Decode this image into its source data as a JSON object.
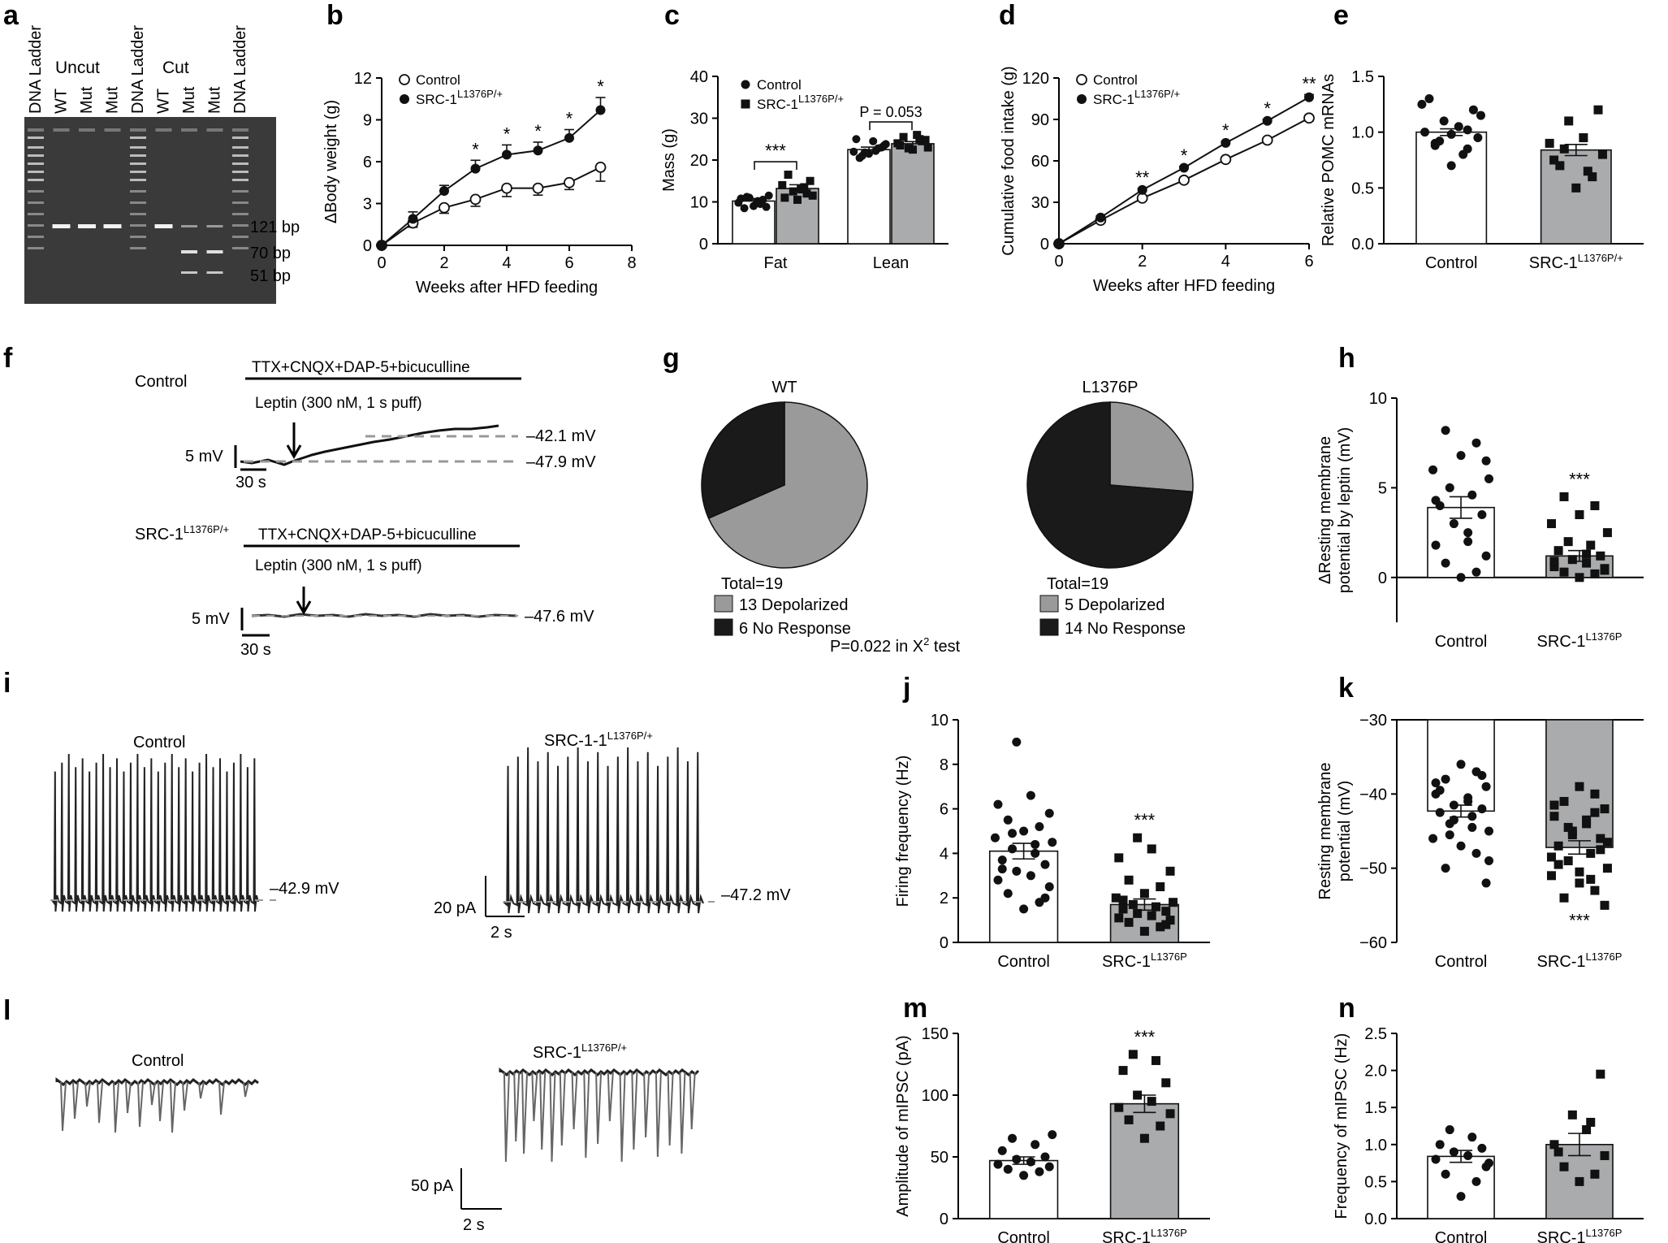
{
  "panels": {
    "a": {
      "letter": "a",
      "lane_labels": [
        "DNA Ladder",
        "WT",
        "Mut",
        "Mut",
        "DNA Ladder",
        "WT",
        "Mut",
        "Mut",
        "DNA Ladder"
      ],
      "group_uncut": "Uncut",
      "group_cut": "Cut",
      "sizes": [
        "121 bp",
        "70 bp",
        "51 bp"
      ]
    },
    "f": {
      "letter": "f",
      "control_label": "Control",
      "mutant_label": "SRC-1",
      "mutant_sup": "L1376P/+",
      "drug_label": "TTX+CNQX+DAP-5+bicuculline",
      "leptin_label": "Leptin (300 nM, 1 s puff)",
      "v1": "–42.1 mV",
      "v2": "–47.9 mV",
      "v3": "–47.6 mV",
      "scale_mv": "5 mV",
      "scale_s": "30 s"
    },
    "g": {
      "letter": "g",
      "footnote": "P=0.022 in X",
      "footnote_sup": "2",
      "footnote_tail": " test"
    },
    "i": {
      "letter": "i",
      "control_label": "Control",
      "mutant_label": "SRC-1-1",
      "mutant_sup": "L1376P/+",
      "v_control": "–42.9 mV",
      "v_mutant": "–47.2 mV",
      "scale_pa": "20 pA",
      "scale_s": "2 s"
    },
    "l": {
      "letter": "l",
      "control_label": "Control",
      "mutant_label": "SRC-1",
      "mutant_sup": "L1376P/+",
      "scale_pa": "50 pA",
      "scale_s": "2 s"
    }
  },
  "chart_data": [
    {
      "id": "b",
      "letter": "b",
      "type": "line",
      "xlabel": "Weeks after HFD feeding",
      "ylabel": "ΔBody weight (g)",
      "xlim": [
        0,
        8
      ],
      "ylim": [
        0,
        12
      ],
      "xticks": [
        "0",
        "2",
        "4",
        "6",
        "8"
      ],
      "yticks": [
        "0",
        "3",
        "6",
        "9",
        "12"
      ],
      "series": [
        {
          "name": "Control",
          "sup": "",
          "marker": "open-circle",
          "x": [
            0,
            1,
            2,
            3,
            4,
            5,
            6,
            7
          ],
          "y": [
            0,
            1.6,
            2.7,
            3.3,
            4.1,
            4.1,
            4.5,
            5.6
          ],
          "err": [
            0,
            0.3,
            0.4,
            0.5,
            0.6,
            0.5,
            0.5,
            1.0
          ]
        },
        {
          "name": "SRC-1",
          "sup": "L1376P/+",
          "marker": "filled-circle",
          "x": [
            0,
            1,
            2,
            3,
            4,
            5,
            6,
            7
          ],
          "y": [
            0,
            1.9,
            3.9,
            5.5,
            6.5,
            6.8,
            7.7,
            9.7
          ],
          "err": [
            0,
            0.5,
            0.4,
            0.6,
            0.7,
            0.6,
            0.6,
            0.9
          ]
        }
      ],
      "annotations": [
        {
          "x": 3,
          "text": "*"
        },
        {
          "x": 4,
          "text": "*"
        },
        {
          "x": 5,
          "text": "*"
        },
        {
          "x": 6,
          "text": "*"
        },
        {
          "x": 7,
          "text": "*"
        }
      ]
    },
    {
      "id": "c",
      "letter": "c",
      "type": "bar",
      "ylabel": "Mass (g)",
      "ylim": [
        0,
        40
      ],
      "yticks": [
        "0",
        "10",
        "20",
        "30",
        "40"
      ],
      "categories": [
        "Fat",
        "Lean"
      ],
      "series": [
        {
          "name": "Control",
          "sup": "",
          "marker": "circle",
          "values": [
            10.2,
            22.5
          ],
          "err": [
            0.6,
            0.6
          ],
          "points": [
            [
              9.0,
              10.5,
              8.5,
              11.5,
              9.8,
              10.2,
              11.0,
              8.8,
              10.8,
              9.5,
              11.2
            ],
            [
              21.5,
              22.8,
              20.5,
              23.5,
              22.0,
              24.5,
              21.8,
              23.0,
              25.0,
              22.2,
              21.0,
              23.8
            ]
          ]
        },
        {
          "name": "SRC-1",
          "sup": "L1376P/+",
          "marker": "square",
          "values": [
            13.2,
            23.9
          ],
          "err": [
            0.9,
            0.5
          ],
          "points": [
            [
              10.5,
              12.0,
              16.5,
              11.5,
              14.0,
              13.0,
              12.5,
              15.0,
              11.0,
              13.5
            ],
            [
              22.5,
              24.5,
              25.5,
              23.0,
              24.0,
              26.0,
              22.8,
              24.8,
              23.5,
              25.0
            ]
          ]
        }
      ],
      "annotations": [
        {
          "category": "Fat",
          "text": "***"
        },
        {
          "category": "Lean",
          "text": "P = 0.053"
        }
      ]
    },
    {
      "id": "d",
      "letter": "d",
      "type": "line",
      "xlabel": "Weeks after HFD feeding",
      "ylabel": "Cumulative food intake (g)",
      "xlim": [
        0,
        6
      ],
      "ylim": [
        0,
        120
      ],
      "xticks": [
        "0",
        "2",
        "4",
        "6"
      ],
      "yticks": [
        "0",
        "30",
        "60",
        "90",
        "120"
      ],
      "series": [
        {
          "name": "Control",
          "sup": "",
          "marker": "open-circle",
          "x": [
            0,
            1,
            2,
            3,
            4,
            5,
            6
          ],
          "y": [
            0,
            17,
            33,
            46,
            61,
            75,
            91
          ],
          "err": [
            0,
            1,
            1,
            1,
            1,
            1,
            2
          ]
        },
        {
          "name": "SRC-1",
          "sup": "L1376P/+",
          "marker": "filled-circle",
          "x": [
            0,
            1,
            2,
            3,
            4,
            5,
            6
          ],
          "y": [
            0,
            19,
            39,
            55,
            73,
            89,
            106
          ],
          "err": [
            0,
            1,
            1,
            1,
            1,
            1,
            2
          ]
        }
      ],
      "annotations": [
        {
          "x": 2,
          "text": "**"
        },
        {
          "x": 3,
          "text": "*"
        },
        {
          "x": 4,
          "text": "*"
        },
        {
          "x": 5,
          "text": "*"
        },
        {
          "x": 6,
          "text": "**"
        }
      ]
    },
    {
      "id": "e",
      "letter": "e",
      "type": "bar",
      "ylabel": "Relative POMC mRNAs",
      "ylim": [
        0,
        1.5
      ],
      "yticks": [
        "0.0",
        "0.5",
        "1.0",
        "1.5"
      ],
      "categories": [
        "Control",
        "SRC-1"
      ],
      "category_sups": [
        "",
        "L1376P/+"
      ],
      "values": [
        1.0,
        0.84
      ],
      "err": [
        0.03,
        0.05
      ],
      "markers": [
        "circle",
        "square"
      ],
      "points": [
        [
          0.7,
          0.85,
          0.9,
          0.95,
          1.0,
          1.05,
          1.1,
          1.2,
          1.3,
          0.8,
          0.92,
          1.15,
          1.25,
          0.98,
          1.02,
          0.88
        ],
        [
          0.5,
          0.6,
          0.7,
          0.8,
          0.9,
          0.95,
          1.1,
          1.2,
          0.75,
          0.65,
          0.85
        ]
      ],
      "annotations": []
    },
    {
      "id": "h",
      "letter": "h",
      "type": "bar",
      "ylabel": "ΔResting membrane potential by leptin (mV)",
      "ylim": [
        -2.5,
        10
      ],
      "yticks": [
        "0",
        "5",
        "10"
      ],
      "categories": [
        "Control",
        "SRC-1"
      ],
      "category_sups": [
        "",
        "L1376P"
      ],
      "values": [
        3.9,
        1.2
      ],
      "err": [
        0.6,
        0.3
      ],
      "markers": [
        "circle",
        "square"
      ],
      "points": [
        [
          0.0,
          0.3,
          0.8,
          1.2,
          1.8,
          2.5,
          3.0,
          3.5,
          4.0,
          4.6,
          5.0,
          5.5,
          6.0,
          6.8,
          7.5,
          8.2,
          6.5,
          4.3,
          2.0
        ],
        [
          0.0,
          0.2,
          0.3,
          0.5,
          0.6,
          0.8,
          1.0,
          1.2,
          1.5,
          1.8,
          2.0,
          2.5,
          3.0,
          3.5,
          4.0,
          4.5,
          0.4,
          0.9,
          1.3
        ]
      ],
      "annotations": [
        {
          "category": 1,
          "text": "***"
        }
      ]
    },
    {
      "id": "j",
      "letter": "j",
      "type": "bar",
      "ylabel": "Firing frequency (Hz)",
      "ylim": [
        0,
        10
      ],
      "yticks": [
        "0",
        "2",
        "4",
        "6",
        "8",
        "10"
      ],
      "categories": [
        "Control",
        "SRC-1"
      ],
      "category_sups": [
        "",
        "L1376P"
      ],
      "values": [
        4.1,
        1.7
      ],
      "err": [
        0.35,
        0.25
      ],
      "markers": [
        "circle",
        "square"
      ],
      "points": [
        [
          1.5,
          1.8,
          2.2,
          2.5,
          2.8,
          3.0,
          3.2,
          3.5,
          3.7,
          4.0,
          4.2,
          4.5,
          4.7,
          5.0,
          5.2,
          5.5,
          5.8,
          6.2,
          6.6,
          9.0,
          2.0,
          3.3,
          4.4,
          4.9
        ],
        [
          0.5,
          0.7,
          0.9,
          1.0,
          1.1,
          1.2,
          1.3,
          1.4,
          1.5,
          1.6,
          1.7,
          1.8,
          2.0,
          2.2,
          2.5,
          2.8,
          3.2,
          3.8,
          4.2,
          4.7,
          0.8,
          1.9
        ]
      ],
      "annotations": [
        {
          "category": 1,
          "text": "***"
        }
      ]
    },
    {
      "id": "k",
      "letter": "k",
      "type": "bar",
      "ylabel": "Resting membrane potential (mV)",
      "ylim": [
        -60,
        -30
      ],
      "yticks": [
        "-30",
        "-40",
        "-50",
        "-60"
      ],
      "categories": [
        "Control",
        "SRC-1"
      ],
      "category_sups": [
        "",
        "L1376P"
      ],
      "values": [
        -42.3,
        -47.2
      ],
      "err": [
        0.8,
        0.9
      ],
      "markers": [
        "circle",
        "square"
      ],
      "points": [
        [
          -36.0,
          -37.0,
          -38.0,
          -39.0,
          -40.0,
          -41.0,
          -41.5,
          -42.0,
          -42.5,
          -43.0,
          -44.0,
          -45.0,
          -46.0,
          -47.0,
          -48.0,
          -50.0,
          -52.0,
          -38.5,
          -40.5,
          -43.5,
          -37.5,
          -39.5,
          -44.5,
          -45.5,
          -49.0
        ],
        [
          -39.0,
          -40.0,
          -41.0,
          -42.0,
          -43.0,
          -44.0,
          -45.0,
          -46.0,
          -47.0,
          -48.0,
          -49.0,
          -50.0,
          -51.0,
          -52.0,
          -53.0,
          -54.0,
          -55.0,
          -41.5,
          -43.5,
          -45.5,
          -47.5,
          -49.5,
          -51.5,
          -44.5,
          -46.5,
          -48.5,
          -50.5,
          -42.5
        ]
      ],
      "annotations": [
        {
          "category": 1,
          "text": "***",
          "position": "below"
        }
      ]
    },
    {
      "id": "m",
      "letter": "m",
      "type": "bar",
      "ylabel": "Amplitude of mIPSC (pA)",
      "ylim": [
        0,
        150
      ],
      "yticks": [
        "0",
        "50",
        "100",
        "150"
      ],
      "categories": [
        "Control",
        "SRC-1"
      ],
      "category_sups": [
        "",
        "L1376P"
      ],
      "values": [
        47,
        93
      ],
      "err": [
        3,
        7
      ],
      "markers": [
        "circle",
        "square"
      ],
      "points": [
        [
          35,
          38,
          40,
          42,
          44,
          46,
          48,
          50,
          55,
          60,
          65,
          68
        ],
        [
          65,
          75,
          80,
          85,
          90,
          95,
          100,
          110,
          120,
          128,
          133
        ]
      ],
      "annotations": [
        {
          "category": 1,
          "text": "***"
        }
      ]
    },
    {
      "id": "n",
      "letter": "n",
      "type": "bar",
      "ylabel": "Frequency of mIPSC (Hz)",
      "ylim": [
        0,
        2.5
      ],
      "yticks": [
        "0.0",
        "0.5",
        "1.0",
        "1.5",
        "2.0",
        "2.5"
      ],
      "categories": [
        "Control",
        "SRC-1"
      ],
      "category_sups": [
        "",
        "L1376P"
      ],
      "values": [
        0.84,
        1.0
      ],
      "err": [
        0.08,
        0.15
      ],
      "markers": [
        "circle",
        "square"
      ],
      "points": [
        [
          0.3,
          0.5,
          0.6,
          0.7,
          0.8,
          0.85,
          0.9,
          0.95,
          1.0,
          1.1,
          1.2,
          0.75
        ],
        [
          0.5,
          0.6,
          0.7,
          0.85,
          1.0,
          1.2,
          1.4,
          1.95,
          0.9,
          1.3
        ]
      ],
      "annotations": []
    },
    {
      "id": "g",
      "letter": "g",
      "type": "pie",
      "pies": [
        {
          "title": "WT",
          "total": "Total=19",
          "slices": [
            {
              "label": "Depolarized",
              "value": 13,
              "color": "#9a9a9a"
            },
            {
              "label": "No Response",
              "value": 6,
              "color": "#1a1a1a"
            }
          ]
        },
        {
          "title": "L1376P",
          "total": "Total=19",
          "slices": [
            {
              "label": "Depolarized",
              "value": 5,
              "color": "#9a9a9a"
            },
            {
              "label": "No Response",
              "value": 14,
              "color": "#1a1a1a"
            }
          ]
        }
      ]
    }
  ]
}
